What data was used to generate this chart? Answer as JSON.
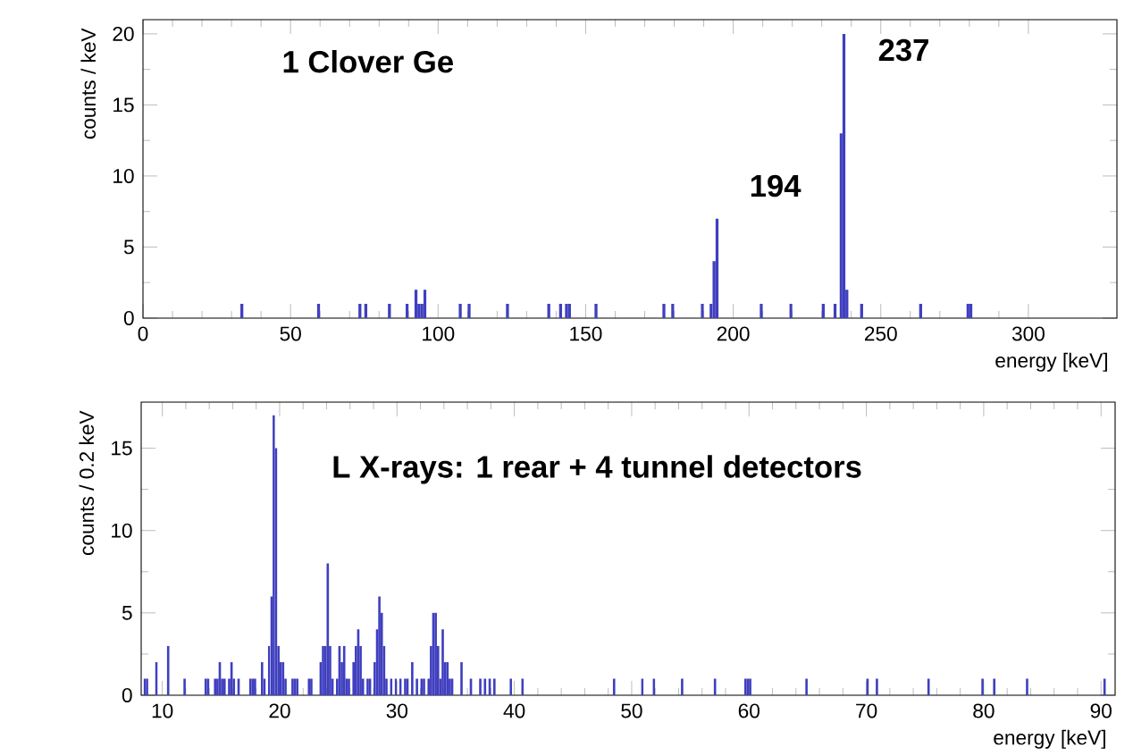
{
  "chart_data": [
    {
      "type": "histogram",
      "xlabel": "energy [keV]",
      "ylabel": "counts / keV",
      "color": "#3f3fbf",
      "xlim": [
        0,
        330
      ],
      "ylim": [
        0,
        21
      ],
      "xticks": [
        0,
        50,
        100,
        150,
        200,
        250,
        300
      ],
      "yticks": [
        0,
        5,
        10,
        15,
        20
      ],
      "annotations": [
        "1 Clover Ge",
        "194",
        "237"
      ],
      "bins": [
        33,
        34,
        59,
        60,
        73,
        74,
        75,
        76,
        83,
        84,
        89,
        90,
        92,
        93,
        94,
        95,
        96,
        107,
        108,
        110,
        111,
        123,
        124,
        137,
        138,
        141,
        142,
        143,
        144,
        145,
        153,
        154,
        176,
        177,
        179,
        180,
        189,
        190,
        192,
        193,
        194,
        195,
        209,
        210,
        219,
        220,
        230,
        231,
        234,
        235,
        236,
        237,
        238,
        239,
        243,
        244,
        263,
        264,
        279,
        280,
        281
      ],
      "values": [
        1,
        0,
        1,
        0,
        1,
        0,
        1,
        0,
        1,
        0,
        1,
        0,
        2,
        1,
        1,
        2,
        0,
        1,
        0,
        1,
        0,
        1,
        0,
        1,
        0,
        1,
        0,
        1,
        1,
        0,
        1,
        0,
        1,
        0,
        1,
        0,
        1,
        0,
        1,
        4,
        7,
        0,
        1,
        0,
        1,
        0,
        1,
        0,
        1,
        0,
        13,
        20,
        2,
        0,
        1,
        0,
        1,
        0,
        1,
        1
      ]
    },
    {
      "type": "histogram",
      "xlabel": "energy [keV]",
      "ylabel": "counts / 0.2 keV",
      "color": "#3f3fbf",
      "xlim": [
        8.2,
        91.2
      ],
      "ylim": [
        0,
        17.8
      ],
      "xticks": [
        10,
        20,
        30,
        40,
        50,
        60,
        70,
        80,
        90
      ],
      "yticks": [
        0,
        5,
        10,
        15
      ],
      "annotations": [
        "L X-rays: 1 rear + 4 tunnel detectors"
      ],
      "bins": [
        8.4,
        8.6,
        8.8,
        9.4,
        9.6,
        10.4,
        10.6,
        11.8,
        12.0,
        13.6,
        13.8,
        14.0,
        14.4,
        14.6,
        14.8,
        15.0,
        15.2,
        15.4,
        15.6,
        15.8,
        16.0,
        16.2,
        16.4,
        16.6,
        17.4,
        17.6,
        17.8,
        18.0,
        18.4,
        18.6,
        18.8,
        19.0,
        19.2,
        19.4,
        19.6,
        19.8,
        20.0,
        20.2,
        20.4,
        20.6,
        21.0,
        21.2,
        21.4,
        21.6,
        22.4,
        22.6,
        22.8,
        23.4,
        23.6,
        23.8,
        24.0,
        24.2,
        24.4,
        24.6,
        24.8,
        25.0,
        25.2,
        25.4,
        25.6,
        25.8,
        26.0,
        26.2,
        26.4,
        26.6,
        26.8,
        27.0,
        27.2,
        27.4,
        27.6,
        27.8,
        28.0,
        28.2,
        28.4,
        28.6,
        28.8,
        29.0,
        29.2,
        29.4,
        29.6,
        29.8,
        30.0,
        30.2,
        30.4,
        30.6,
        30.8,
        31.0,
        31.2,
        31.4,
        31.6,
        31.8,
        32.0,
        32.2,
        32.4,
        32.6,
        32.8,
        33.0,
        33.2,
        33.4,
        33.6,
        33.8,
        34.0,
        34.2,
        34.4,
        34.6,
        34.8,
        35.4,
        35.6,
        36.2,
        36.4,
        37.0,
        37.2,
        37.4,
        37.6,
        37.8,
        38.0,
        38.2,
        38.4,
        39.6,
        39.8,
        40.6,
        40.8,
        48.4,
        48.6,
        50.8,
        51.0,
        51.8,
        52.0,
        54.2,
        54.4,
        57.0,
        57.2,
        59.6,
        59.8,
        60.0,
        60.2,
        64.8,
        65.0,
        70.0,
        70.2,
        70.8,
        71.0,
        75.2,
        75.4,
        79.8,
        80.0,
        80.8,
        81.0,
        83.6,
        83.8,
        90.2,
        90.4
      ],
      "values": [
        1,
        1,
        0,
        2,
        0,
        3,
        0,
        1,
        0,
        1,
        1,
        0,
        1,
        1,
        2,
        1,
        1,
        0,
        1,
        2,
        1,
        0,
        1,
        0,
        1,
        1,
        1,
        0,
        2,
        1,
        0,
        3,
        6,
        17,
        15,
        3,
        2,
        2,
        1,
        0,
        1,
        1,
        1,
        0,
        1,
        1,
        0,
        2,
        3,
        3,
        8,
        3,
        1,
        0,
        1,
        3,
        2,
        3,
        1,
        1,
        0,
        2,
        3,
        4,
        3,
        1,
        0,
        1,
        1,
        0,
        2,
        4,
        6,
        5,
        3,
        1,
        0,
        1,
        0,
        1,
        0,
        1,
        0,
        1,
        1,
        0,
        2,
        0,
        1,
        0,
        1,
        1,
        0,
        1,
        3,
        5,
        5,
        3,
        1,
        4,
        2,
        2,
        1,
        1,
        0,
        2,
        0,
        1,
        0,
        1,
        0,
        1,
        0,
        1,
        0,
        1,
        0,
        1,
        0,
        1,
        0,
        1,
        0,
        1,
        0,
        1,
        0,
        1,
        0,
        1,
        0,
        1,
        1,
        1,
        0,
        1,
        0,
        1,
        0,
        1,
        0,
        1,
        0,
        1,
        0,
        1,
        0,
        1,
        0,
        1
      ]
    }
  ]
}
